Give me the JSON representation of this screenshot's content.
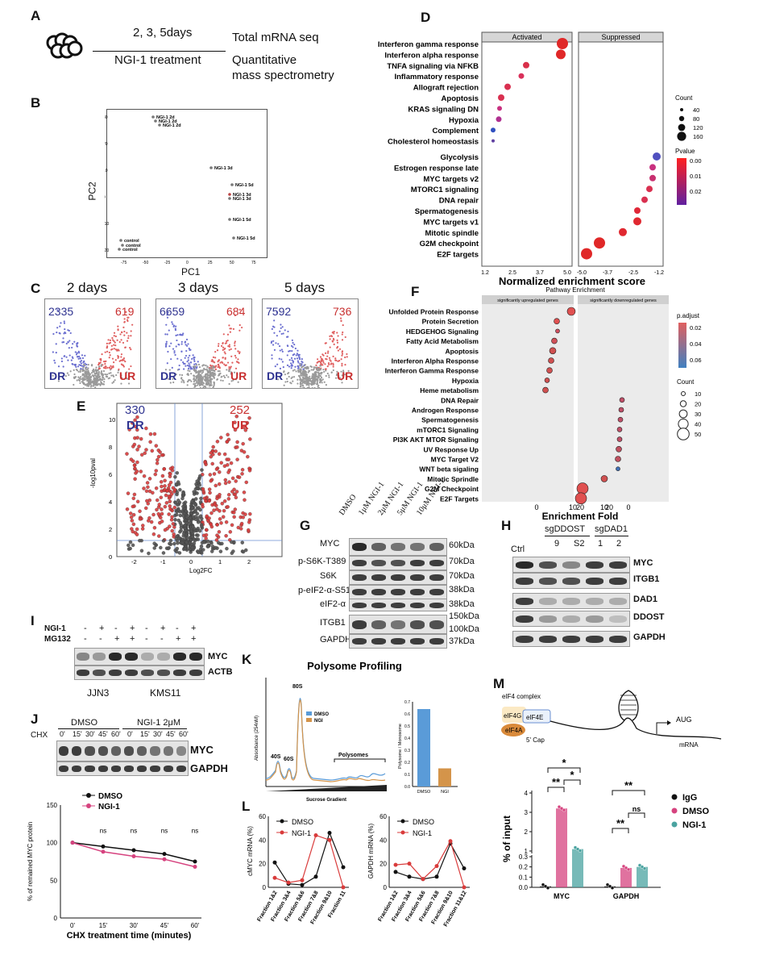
{
  "panels": {
    "A": {
      "letter": "A",
      "days": "2, 3, 5days",
      "treatment": "NGI-1 treatment",
      "out1": "Total mRNA seq",
      "out2": "Quantitative",
      "out3": "mass spectrometry"
    },
    "B": {
      "letter": "B",
      "xlabel": "PC1",
      "ylabel": "PC2",
      "xticks": [
        "-75",
        "-50",
        "-25",
        "0",
        "25",
        "50",
        "75"
      ],
      "yticks": [
        "30",
        "20",
        "10",
        "0",
        "-10",
        "-20"
      ],
      "labels": [
        "NGI-1 2d",
        "NGI-1 2d",
        "NGI-1 2d",
        "NGI-1 3d",
        "NGI-1 5d",
        "NGI-1 3d",
        "NGI-1 3d",
        "NGI-1 5d",
        "NGI-1 5d",
        "control",
        "control",
        "control"
      ]
    },
    "C": {
      "letter": "C",
      "titles": [
        "2 days",
        "3 days",
        "5 days"
      ],
      "dr": [
        "2335",
        "6659",
        "7592"
      ],
      "ur": [
        "619",
        "684",
        "736"
      ],
      "dr_label": "DR",
      "ur_label": "UR"
    },
    "D": {
      "letter": "D",
      "strip_left": "Activated",
      "strip_right": "Suppressed",
      "xlabel": "Normalized enrichment score",
      "xticks_left": [
        "1.2",
        "2.5",
        "3.7",
        "5.0"
      ],
      "xticks_right": [
        "-5.0",
        "-3.7",
        "-2.5",
        "-1.2"
      ],
      "count_title": "Count",
      "count_vals": [
        "40",
        "80",
        "120",
        "160"
      ],
      "p_title": "Pvalue",
      "p_vals": [
        "0.00",
        "0.01",
        "0.02"
      ],
      "terms": [
        "Interferon gamma response",
        "Interferon alpha response",
        "TNFA signaling via NFKB",
        "Inflammatory response",
        "Allograft rejection",
        "Apoptosis",
        "KRAS signaling DN",
        "Hypoxia",
        "Complement",
        "Cholesterol homeostasis",
        "Glycolysis",
        "Estrogen response late",
        "MYC targets v2",
        "MTORC1 signaling",
        "DNA repair",
        "Spermatogenesis",
        "MYC targets v1",
        "Mitotic spindle",
        "G2M checkpoint",
        "E2F targets"
      ]
    },
    "E": {
      "letter": "E",
      "dr_num": "330",
      "dr": "DR",
      "ur_num": "252",
      "ur": "UR",
      "xlabel": "Log2FC",
      "ylabel": "-log10pval",
      "xticks": [
        "-2",
        "-1",
        "0",
        "1",
        "2"
      ],
      "yticks": [
        "10",
        "8",
        "6",
        "4",
        "2",
        "0"
      ]
    },
    "F": {
      "letter": "F",
      "title": "Pathway Enrichment",
      "strip_left": "significantly upregulated genes",
      "strip_right": "significantly downregulated genes",
      "xlabel": "Enrichment Fold",
      "xticks_left": [
        "0",
        "10",
        "20"
      ],
      "xticks_right": [
        "20",
        "10",
        "0"
      ],
      "p_title": "p.adjust",
      "p_vals": [
        "0.02",
        "0.04",
        "0.06"
      ],
      "count_title": "Count",
      "count_vals": [
        "10",
        "20",
        "30",
        "40",
        "50"
      ],
      "terms": [
        "Unfolded Protein Response",
        "Protein Secretion",
        "HEDGEHOG Signaling",
        "Fatty Acid Metabolism",
        "Apoptosis",
        "Interferon Alpha Response",
        "Interferon Gamma Response",
        "Hypoxia",
        "Heme metabolism",
        "DNA Repair",
        "Androgen Response",
        "Spermatogenesis",
        "mTORC1 Signaling",
        "PI3K AKT MTOR Signaling",
        "UV Response Up",
        "MYC Target V2",
        "WNT beta sigaling",
        "Mitotic Sprindle",
        "G2M Checkpoint",
        "E2F Targets"
      ]
    },
    "G": {
      "letter": "G",
      "lanes": [
        "DMSO",
        "1μM NGI-1",
        "2μM NGI-1",
        "5μM NGI-1",
        "10μM NGI-1"
      ],
      "rows": [
        "MYC",
        "p-S6K-T389",
        "S6K",
        "p-eIF2-α-S51",
        "eIF2-α",
        "ITGB1",
        "GAPDH"
      ],
      "sizes": [
        "60kDa",
        "70kDa",
        "70kDa",
        "38kDa",
        "38kDa",
        "150kDa",
        "100kDa",
        "37kDa"
      ]
    },
    "H": {
      "letter": "H",
      "ctrl": "Ctrl",
      "group1": "sgDDOST",
      "group2": "sgDAD1",
      "lanes": [
        "9",
        "S2",
        "1",
        "2"
      ],
      "rows": [
        "MYC",
        "ITGB1",
        "DAD1",
        "DDOST",
        "GAPDH"
      ]
    },
    "I": {
      "letter": "I",
      "ngi": "NGI-1",
      "mg": "MG132",
      "ngi_signs": [
        "-",
        "+",
        "-",
        "+",
        "-",
        "+",
        "-",
        "+"
      ],
      "mg_signs": [
        "-",
        "-",
        "+",
        "+",
        "-",
        "-",
        "+",
        "+"
      ],
      "rows": [
        "MYC",
        "ACTB"
      ],
      "cells": [
        "JJN3",
        "KMS11"
      ]
    },
    "J": {
      "letter": "J",
      "dmso": "DMSO",
      "ngi": "NGI-1 2μM",
      "chx": "CHX",
      "times": [
        "0'",
        "15'",
        "30'",
        "45'",
        "60'"
      ],
      "rows": [
        "MYC",
        "GAPDH"
      ],
      "ylabel": "% of remained MYC protein",
      "xlabel": "CHX treatment time (minutes)",
      "legend": [
        "DMSO",
        "NGI-1"
      ],
      "ns": [
        "ns",
        "ns",
        "ns",
        "ns"
      ],
      "yticks": [
        "150",
        "100",
        "50",
        "0"
      ]
    },
    "K": {
      "letter": "K",
      "title": "Polysome Profiling",
      "ylabel": "Absorbance (254nM)",
      "xlabel": "Sucrose Gradient",
      "peaks": [
        "40S",
        "60S",
        "80S",
        "Polysomes"
      ],
      "legend": [
        "DMSO",
        "NGI"
      ],
      "bar_ylabel": "Polysome / Monosome",
      "bar_yticks": [
        "0.7",
        "0.6",
        "0.5",
        "0.4",
        "0.3",
        "0.2",
        "0.1",
        "0.0"
      ]
    },
    "L": {
      "letter": "L",
      "legend": [
        "DMSO",
        "NGI-1"
      ],
      "ylabel_left": "cMYC mRNA (%)",
      "ylabel_right": "GAPDH mRNA (%)",
      "yticks": [
        "60",
        "40",
        "20",
        "0"
      ],
      "xcats_left": [
        "Fraction 1&2",
        "Fraction 3&4",
        "Fraction 5&6",
        "Fraction 7&8",
        "Fraction 9&10",
        "Fraction 11"
      ],
      "xcats_right": [
        "Fraction 1&2",
        "Fraction 3&4",
        "Fraction 5&6",
        "Fraction 7&8",
        "Fraction 9&10",
        "Fraction 11&12"
      ]
    },
    "M": {
      "letter": "M",
      "complex": "eIF4 complex",
      "eif4g": "eIF4G",
      "eif4e": "eIF4E",
      "eif4a": "eIF4A",
      "cap": "5' Cap",
      "aug": "AUG",
      "mrna": "mRNA",
      "ylabel": "% of input",
      "yticks": [
        "4",
        "3",
        "2",
        "1",
        "0.3",
        "0.2",
        "0.1",
        "0.0"
      ],
      "cats": [
        "MYC",
        "GAPDH"
      ],
      "legend": [
        "IgG",
        "DMSO",
        "NGI-1"
      ],
      "sig": [
        "*",
        "*",
        "**",
        "**",
        "**",
        "ns"
      ]
    }
  },
  "colors": {
    "red": "#d93b3b",
    "blue": "#3b3fa8",
    "grey": "#9a9a9a",
    "pink": "#d6437f",
    "teal": "#4aa3a0",
    "orange": "#d4944a",
    "lightblue": "#5a9bd8"
  },
  "chart_data": [
    {
      "type": "line",
      "title": "% of remained MYC protein",
      "x": [
        "0'",
        "15'",
        "30'",
        "45'",
        "60'"
      ],
      "series": [
        {
          "name": "DMSO",
          "values": [
            100,
            95,
            90,
            85,
            75
          ]
        },
        {
          "name": "NGI-1",
          "values": [
            100,
            88,
            82,
            78,
            68
          ]
        }
      ],
      "ylim": [
        0,
        150
      ]
    },
    {
      "type": "line",
      "x": [
        "Fraction 1&2",
        "Fraction 3&4",
        "Fraction 5&6",
        "Fraction 7&8",
        "Fraction 9&10",
        "Fraction 11"
      ],
      "series": [
        {
          "name": "DMSO",
          "values": [
            21,
            3,
            2,
            9,
            46,
            17
          ]
        },
        {
          "name": "NGI-1",
          "values": [
            8,
            4,
            6,
            44,
            40,
            0
          ]
        }
      ],
      "ylabel": "cMYC mRNA (%)",
      "ylim": [
        0,
        60
      ]
    },
    {
      "type": "line",
      "x": [
        "Fraction 1&2",
        "Fraction 3&4",
        "Fraction 5&6",
        "Fraction 7&8",
        "Fraction 9&10",
        "Fraction 11&12"
      ],
      "series": [
        {
          "name": "DMSO",
          "values": [
            13,
            9,
            7,
            9,
            37,
            16
          ]
        },
        {
          "name": "NGI-1",
          "values": [
            19,
            20,
            7,
            18,
            39,
            0
          ]
        }
      ],
      "ylabel": "GAPDH mRNA (%)",
      "ylim": [
        0,
        60
      ]
    },
    {
      "type": "bar",
      "categories": [
        "DMSO",
        "NGI"
      ],
      "values": [
        0.64,
        0.15
      ],
      "ylabel": "Polysome / Monosome",
      "ylim": [
        0,
        0.7
      ]
    },
    {
      "type": "bar",
      "categories": [
        "MYC",
        "GAPDH"
      ],
      "series": [
        {
          "name": "IgG",
          "values": [
            0.01,
            0.01
          ]
        },
        {
          "name": "DMSO",
          "values": [
            3.2,
            0.19
          ]
        },
        {
          "name": "NGI-1",
          "values": [
            1.1,
            0.2
          ]
        }
      ],
      "ylabel": "% of input"
    }
  ]
}
